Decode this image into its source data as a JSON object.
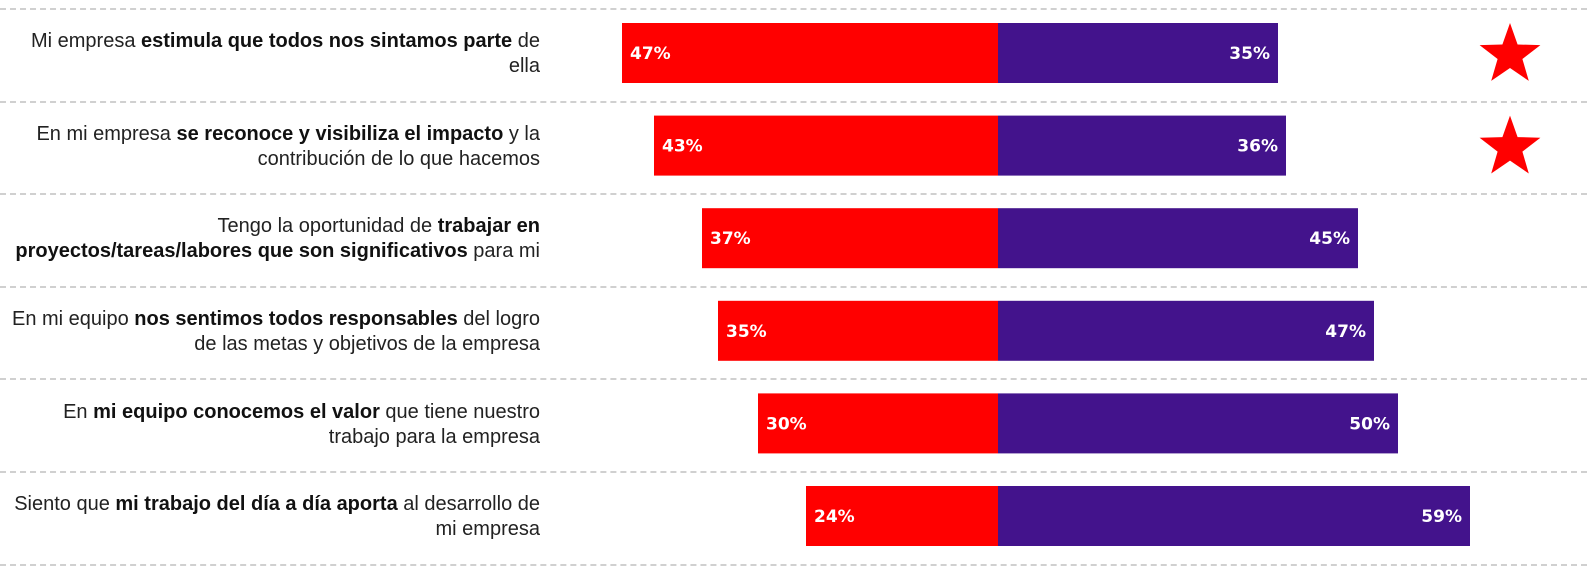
{
  "colors": {
    "negative": "#ff0000",
    "positive": "#43138c",
    "star": "#ff0000"
  },
  "chart_data": {
    "type": "bar",
    "orientation": "horizontal-diverging",
    "categories": [
      "Mi empresa estimula que todos nos sintamos parte de ella",
      "En mi empresa se reconoce y visibiliza el impacto y la contribución de lo que hacemos",
      "Tengo la oportunidad de trabajar en proyectos/tareas/labores que son significativos para mi",
      "En mi equipo nos sentimos todos responsables del logro de las metas y objetivos de la empresa",
      "En mi equipo conocemos el valor que tiene nuestro trabajo para la empresa",
      "Siento que mi trabajo del día a día aporta al desarrollo de mi empresa"
    ],
    "series": [
      {
        "values": [
          47,
          43,
          37,
          35,
          30,
          24
        ]
      },
      {
        "values": [
          35,
          36,
          45,
          47,
          50,
          59
        ]
      }
    ],
    "value_labels": [
      [
        "47%",
        "35%"
      ],
      [
        "43%",
        "36%"
      ],
      [
        "37%",
        "45%"
      ],
      [
        "35%",
        "47%"
      ],
      [
        "30%",
        "50%"
      ],
      [
        "24%",
        "59%"
      ]
    ],
    "starred": [
      true,
      true,
      false,
      false,
      false,
      false
    ],
    "xlim": [
      -50,
      60
    ],
    "title": "",
    "xlabel": "",
    "ylabel": "",
    "grid": false
  },
  "rows": [
    {
      "parts": [
        {
          "t": "Mi empresa ",
          "b": false
        },
        {
          "t": "estimula que todos nos sintamos parte",
          "b": true
        },
        {
          "t": " de ella",
          "b": false
        }
      ]
    },
    {
      "parts": [
        {
          "t": "En mi empresa ",
          "b": false
        },
        {
          "t": "se reconoce y visibiliza el impacto",
          "b": true
        },
        {
          "t": " y la contribución de lo que hacemos",
          "b": false
        }
      ]
    },
    {
      "parts": [
        {
          "t": "Tengo la oportunidad de ",
          "b": false
        },
        {
          "t": "trabajar en proyectos/tareas/labores que son significativos",
          "b": true
        },
        {
          "t": " para mi",
          "b": false
        }
      ]
    },
    {
      "parts": [
        {
          "t": "En mi equipo ",
          "b": false
        },
        {
          "t": "nos sentimos todos responsables",
          "b": true
        },
        {
          "t": " del logro de las metas y objetivos de la empresa",
          "b": false
        }
      ]
    },
    {
      "parts": [
        {
          "t": "En ",
          "b": false
        },
        {
          "t": "mi equipo conocemos el valor",
          "b": true
        },
        {
          "t": " que tiene nuestro trabajo para la empresa",
          "b": false
        }
      ]
    },
    {
      "parts": [
        {
          "t": "Siento que ",
          "b": false
        },
        {
          "t": "mi trabajo del día a día aporta",
          "b": true
        },
        {
          "t": " al desarrollo de mi empresa",
          "b": false
        }
      ]
    }
  ]
}
